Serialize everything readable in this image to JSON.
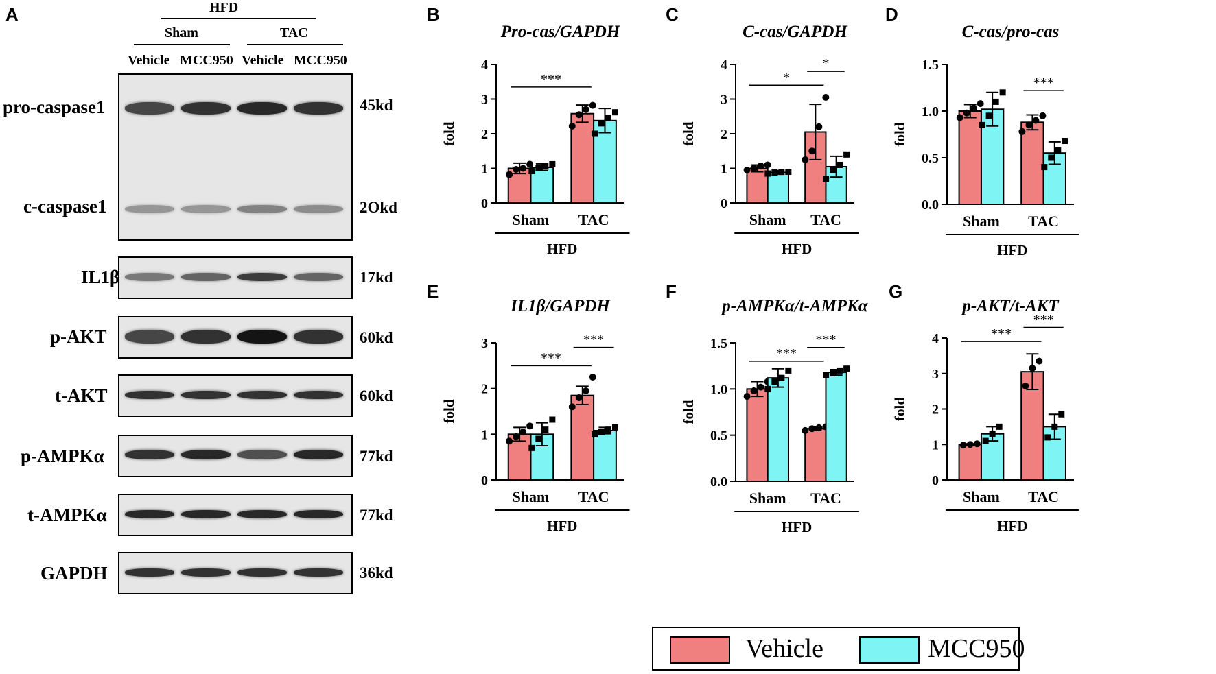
{
  "figure": {
    "panel_letters": [
      "A",
      "B",
      "C",
      "D",
      "E",
      "F",
      "G"
    ],
    "legend": {
      "items": [
        {
          "label": "Vehicle",
          "color": "#f08080"
        },
        {
          "label": "MCC950",
          "color": "#7ff4f4"
        }
      ]
    },
    "colors": {
      "vehicle": "#f08080",
      "mcc950": "#7ff4f4",
      "axis": "#000000"
    }
  },
  "western_blot": {
    "header": {
      "diet": "HFD",
      "groups": [
        "Sham",
        "TAC"
      ],
      "lanes": [
        "Vehicle",
        "MCC950",
        "Vehicle",
        "MCC950"
      ]
    },
    "rows": [
      {
        "label": "pro-caspase1",
        "kd": "45kd"
      },
      {
        "label": "c-caspase1",
        "kd": "2Okd"
      },
      {
        "label": "IL1β",
        "kd": "17kd"
      },
      {
        "label": "p-AKT",
        "kd": "60kd"
      },
      {
        "label": "t-AKT",
        "kd": "60kd"
      },
      {
        "label": "p-AMPKα",
        "kd": "77kd"
      },
      {
        "label": "t-AMPKα",
        "kd": "77kd"
      },
      {
        "label": "GAPDH",
        "kd": "36kd"
      }
    ],
    "band_intensity": {
      "pro-caspase1": [
        0.75,
        0.85,
        0.9,
        0.85
      ],
      "c-caspase1": [
        0.35,
        0.35,
        0.45,
        0.4
      ],
      "IL1β": [
        0.5,
        0.6,
        0.8,
        0.6
      ],
      "p-AKT": [
        0.75,
        0.85,
        1.0,
        0.85
      ],
      "t-AKT": [
        0.85,
        0.85,
        0.85,
        0.85
      ],
      "p-AMPKα": [
        0.85,
        0.9,
        0.7,
        0.9
      ],
      "t-AMPKα": [
        0.9,
        0.9,
        0.9,
        0.9
      ],
      "GAPDH": [
        0.85,
        0.85,
        0.85,
        0.85
      ]
    }
  },
  "chart_data": [
    {
      "panel": "B",
      "type": "bar",
      "title": "Pro-cas/GAPDH",
      "ylabel": "fold",
      "ylim": [
        0,
        4
      ],
      "yticks": [
        "0",
        "1",
        "2",
        "3",
        "4"
      ],
      "categories": [
        "Sham",
        "TAC"
      ],
      "group_label": "HFD",
      "series": [
        {
          "name": "Vehicle",
          "values": [
            1.0,
            2.58
          ],
          "errors": [
            0.15,
            0.25
          ],
          "points": [
            [
              0.82,
              0.97,
              1.0,
              1.12
            ],
            [
              2.22,
              2.55,
              2.7,
              2.82
            ]
          ]
        },
        {
          "name": "MCC950",
          "values": [
            1.03,
            2.38
          ],
          "errors": [
            0.1,
            0.35
          ],
          "points": [
            [
              0.92,
              1.0,
              1.05,
              1.12
            ],
            [
              2.0,
              2.3,
              2.45,
              2.62
            ]
          ]
        }
      ],
      "significance": [
        {
          "text": "***",
          "from": "Sham-Vehicle",
          "to": "TAC-Vehicle",
          "y": 3.35
        }
      ]
    },
    {
      "panel": "C",
      "type": "bar",
      "title": "C-cas/GAPDH",
      "ylabel": "fold",
      "ylim": [
        0,
        4
      ],
      "yticks": [
        "0",
        "1",
        "2",
        "3",
        "4"
      ],
      "categories": [
        "Sham",
        "TAC"
      ],
      "group_label": "HFD",
      "series": [
        {
          "name": "Vehicle",
          "values": [
            1.0,
            2.05
          ],
          "errors": [
            0.1,
            0.8
          ],
          "points": [
            [
              0.95,
              1.0,
              1.07,
              1.1
            ],
            [
              1.25,
              1.5,
              2.2,
              3.05
            ]
          ]
        },
        {
          "name": "MCC950",
          "values": [
            0.88,
            1.05
          ],
          "errors": [
            0.05,
            0.3
          ],
          "points": [
            [
              0.85,
              0.88,
              0.9,
              0.9
            ],
            [
              0.7,
              0.95,
              1.1,
              1.4
            ]
          ]
        }
      ],
      "significance": [
        {
          "text": "*",
          "from": "Sham-Vehicle",
          "to": "TAC-Vehicle",
          "y": 3.4
        },
        {
          "text": "*",
          "from": "TAC-Vehicle",
          "to": "TAC-MCC950",
          "y": 3.8
        }
      ]
    },
    {
      "panel": "D",
      "type": "bar",
      "title": "C-cas/pro-cas",
      "ylabel": "fold",
      "ylim": [
        0,
        1.5
      ],
      "yticks": [
        "0.0",
        "0.5",
        "1.0",
        "1.5"
      ],
      "categories": [
        "Sham",
        "TAC"
      ],
      "group_label": "HFD",
      "series": [
        {
          "name": "Vehicle",
          "values": [
            1.0,
            0.88
          ],
          "errors": [
            0.07,
            0.08
          ],
          "points": [
            [
              0.93,
              0.98,
              1.03,
              1.08
            ],
            [
              0.78,
              0.85,
              0.9,
              0.95
            ]
          ]
        },
        {
          "name": "MCC950",
          "values": [
            1.02,
            0.55
          ],
          "errors": [
            0.18,
            0.12
          ],
          "points": [
            [
              0.85,
              0.95,
              1.1,
              1.2
            ],
            [
              0.4,
              0.5,
              0.58,
              0.68
            ]
          ]
        }
      ],
      "significance": [
        {
          "text": "***",
          "from": "TAC-Vehicle",
          "to": "TAC-MCC950",
          "y": 1.22
        }
      ]
    },
    {
      "panel": "E",
      "type": "bar",
      "title": "IL1β/GAPDH",
      "ylabel": "fold",
      "ylim": [
        0,
        3
      ],
      "yticks": [
        "0",
        "1",
        "2",
        "3"
      ],
      "categories": [
        "Sham",
        "TAC"
      ],
      "group_label": "HFD",
      "series": [
        {
          "name": "Vehicle",
          "values": [
            1.0,
            1.85
          ],
          "errors": [
            0.15,
            0.2
          ],
          "points": [
            [
              0.85,
              0.95,
              1.05,
              1.18
            ],
            [
              1.6,
              1.8,
              1.95,
              2.25
            ]
          ]
        },
        {
          "name": "MCC950",
          "values": [
            1.0,
            1.08
          ],
          "errors": [
            0.25,
            0.07
          ],
          "points": [
            [
              0.7,
              0.9,
              1.1,
              1.32
            ],
            [
              1.0,
              1.05,
              1.1,
              1.15
            ]
          ]
        }
      ],
      "significance": [
        {
          "text": "***",
          "from": "Sham-Vehicle",
          "to": "TAC-Vehicle",
          "y": 2.5
        },
        {
          "text": "***",
          "from": "TAC-Vehicle",
          "to": "TAC-MCC950",
          "y": 2.9
        }
      ]
    },
    {
      "panel": "F",
      "type": "bar",
      "title": "p-AMPKα/t-AMPKα",
      "ylabel": "fold",
      "ylim": [
        0,
        1.5
      ],
      "yticks": [
        "0.0",
        "0.5",
        "1.0",
        "1.5"
      ],
      "categories": [
        "Sham",
        "TAC"
      ],
      "group_label": "HFD",
      "series": [
        {
          "name": "Vehicle",
          "values": [
            1.0,
            0.57
          ],
          "errors": [
            0.08,
            0.02
          ],
          "points": [
            [
              0.92,
              0.98,
              1.02,
              1.08
            ],
            [
              0.55,
              0.57,
              0.58,
              0.59
            ]
          ]
        },
        {
          "name": "MCC950",
          "values": [
            1.12,
            1.18
          ],
          "errors": [
            0.1,
            0.03
          ],
          "points": [
            [
              1.0,
              1.08,
              1.12,
              1.2
            ],
            [
              1.15,
              1.17,
              1.2,
              1.22
            ]
          ]
        }
      ],
      "significance": [
        {
          "text": "***",
          "from": "Sham-Vehicle",
          "to": "TAC-Vehicle",
          "y": 1.3
        },
        {
          "text": "***",
          "from": "TAC-Vehicle",
          "to": "TAC-MCC950",
          "y": 1.45
        }
      ]
    },
    {
      "panel": "G",
      "type": "bar",
      "title": "p-AKT/t-AKT",
      "ylabel": "fold",
      "ylim": [
        0,
        4
      ],
      "yticks": [
        "0",
        "1",
        "2",
        "3",
        "4"
      ],
      "categories": [
        "Sham",
        "TAC"
      ],
      "group_label": "HFD",
      "series": [
        {
          "name": "Vehicle",
          "values": [
            1.0,
            3.05
          ],
          "errors": [
            0.02,
            0.5
          ],
          "points": [
            [
              0.98,
              1.0,
              1.02
            ],
            [
              2.65,
              3.15,
              3.35
            ]
          ]
        },
        {
          "name": "MCC950",
          "values": [
            1.3,
            1.5
          ],
          "errors": [
            0.2,
            0.35
          ],
          "points": [
            [
              1.1,
              1.3,
              1.5
            ],
            [
              1.2,
              1.5,
              1.85
            ]
          ]
        }
      ],
      "significance": [
        {
          "text": "***",
          "from": "Sham-Vehicle",
          "to": "TAC-Vehicle",
          "y": 3.9
        },
        {
          "text": "***",
          "from": "TAC-Vehicle",
          "to": "TAC-MCC950",
          "y": 4.3
        }
      ]
    }
  ]
}
